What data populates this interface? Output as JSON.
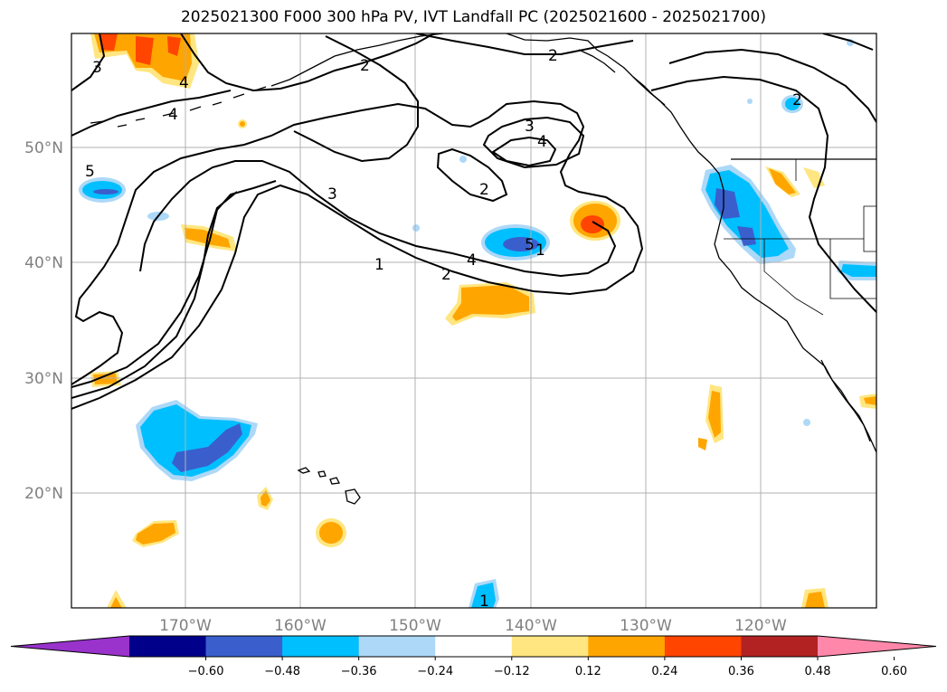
{
  "title": "2025021300 F000 300 hPa PV, IVT Landfall PC (2025021600 - 2025021700)",
  "lat_labels": [
    "50°N",
    "40°N",
    "30°N",
    "20°N"
  ],
  "lon_labels": [
    "170°W",
    "160°W",
    "150°W",
    "140°W",
    "130°W",
    "120°W"
  ],
  "colorbar": {
    "tick_labels": [
      "−0.60",
      "−0.48",
      "−0.36",
      "−0.24",
      "−0.12",
      "0.12",
      "0.24",
      "0.36",
      "0.48",
      "0.60"
    ],
    "colors": [
      "#9933cc",
      "#00008b",
      "#3a5fcd",
      "#00bfff",
      "#add8f7",
      "#ffffff",
      "#ffe680",
      "#ffa500",
      "#ff4500",
      "#b22222",
      "#ff88aa"
    ]
  },
  "contour_labels": [
    "2",
    "3",
    "4",
    "4",
    "3",
    "2",
    "3",
    "4",
    "2",
    "4",
    "2",
    "1",
    "5",
    "5",
    "1",
    "2",
    "1"
  ],
  "map": {
    "lon_range": [
      -180,
      -110
    ],
    "lat_range": [
      10,
      60
    ],
    "features": [
      "300 hPa PV contours",
      "IVT landfall PC shading",
      "coastlines",
      "state borders"
    ]
  }
}
